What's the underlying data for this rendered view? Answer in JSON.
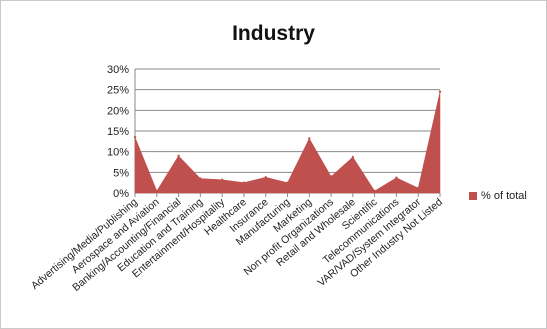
{
  "chart_data": {
    "type": "area",
    "title": "Industry",
    "categories": [
      "Advertising/Media/Publishing",
      "Aerospace and Aviation",
      "Banking/Accounting/Financial",
      "Education and Training",
      "Entertainment/Hospitality",
      "Healthcare",
      "Insurance",
      "Manufacturing",
      "Marketing",
      "Non profit Organizations",
      "Retail and Wholesale",
      "Scientific",
      "Telecommunications",
      "VAR/VAD/System Integrator",
      "Other Industry Not Listed"
    ],
    "series": [
      {
        "name": "% of total",
        "color": "#c0504d",
        "values": [
          13.5,
          0.5,
          9.0,
          3.5,
          3.2,
          2.5,
          3.8,
          2.5,
          13.2,
          4.0,
          8.7,
          0.5,
          3.7,
          1.2,
          24.5
        ]
      }
    ],
    "ylim": [
      0,
      30
    ],
    "yticks": [
      "0%",
      "5%",
      "10%",
      "15%",
      "20%",
      "25%",
      "30%"
    ],
    "grid": true,
    "legend": "right"
  }
}
